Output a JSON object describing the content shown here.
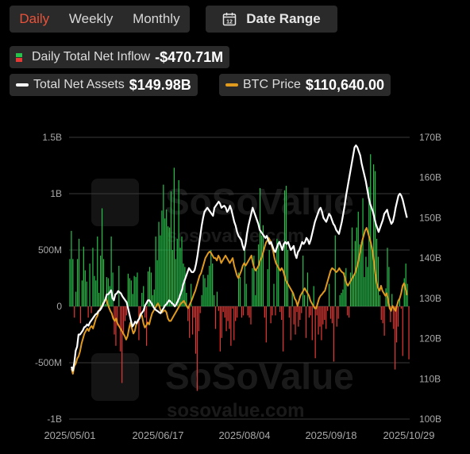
{
  "tabs": [
    {
      "label": "Daily",
      "active": true
    },
    {
      "label": "Weekly",
      "active": false
    },
    {
      "label": "Monthly",
      "active": false
    }
  ],
  "date_range": {
    "label": "Date Range",
    "icon": "calendar-icon",
    "icon_text": "12"
  },
  "legend": {
    "inflow": {
      "label": "Daily Total Net Inflow",
      "value": "-$470.71M"
    },
    "assets": {
      "label": "Total Net Assets",
      "value": "$149.98B",
      "color": "#ffffff"
    },
    "btc": {
      "label": "BTC Price",
      "value": "$110,640.00",
      "color": "#e09a1e"
    }
  },
  "watermark": {
    "brand": "SoSoValue",
    "url": "sosovalue.com"
  },
  "colors": {
    "positive": "#27c24c",
    "negative": "#e53935",
    "assets": "#ffffff",
    "btc": "#e09a1e"
  },
  "chart_data": {
    "type": "bar+line",
    "left_ticks": [
      "1.5B",
      "1B",
      "500M",
      "0",
      "-500M",
      "-1B"
    ],
    "right_ticks": [
      "170B",
      "160B",
      "150B",
      "140B",
      "130B",
      "120B",
      "110B",
      "100B"
    ],
    "x_ticks": [
      "2025/05/01",
      "2025/06/17",
      "2025/08/04",
      "2025/09/18",
      "2025/10/29"
    ],
    "ylim_left": [
      -1000,
      1500
    ],
    "ylim_right": [
      100,
      170
    ],
    "inflow_values_musd": [
      420,
      670,
      420,
      -100,
      130,
      420,
      600,
      -150,
      230,
      530,
      320,
      220,
      -100,
      380,
      -60,
      520,
      270,
      230,
      620,
      120,
      450,
      870,
      420,
      20,
      260,
      250,
      180,
      620,
      300,
      -250,
      -350,
      -170,
      360,
      -400,
      -680,
      -250,
      -130,
      -80,
      290,
      250,
      230,
      110,
      270,
      260,
      300,
      -300,
      -100,
      120,
      180,
      -100,
      -350,
      310,
      350,
      300,
      100,
      150,
      620,
      410,
      750,
      630,
      850,
      1080,
      780,
      860,
      710,
      700,
      1020,
      500,
      1230,
      420,
      600,
      1120,
      520,
      620,
      380,
      350,
      120,
      -130,
      -280,
      200,
      -250,
      -100,
      -420,
      -750,
      -220,
      -60,
      100,
      280,
      250,
      170,
      280,
      360,
      500,
      380,
      100,
      -200,
      130,
      -40,
      -400,
      -280,
      -50,
      -100,
      -220,
      -130,
      -200,
      -350,
      -20,
      -300,
      -130,
      -100,
      300,
      260,
      -100,
      -80,
      500,
      200,
      -80,
      -100,
      -160,
      340,
      450,
      100,
      320,
      550,
      1050,
      630,
      720,
      -100,
      -320,
      330,
      500,
      -150,
      -80,
      200,
      -80,
      600,
      580,
      -50,
      -120,
      -400,
      1030,
      1070,
      500,
      -100,
      -300,
      120,
      -160,
      -250,
      -50,
      -180,
      -120,
      -60,
      450,
      100,
      -280,
      300,
      -100,
      -80,
      -300,
      180,
      -460,
      -80,
      -250,
      -180,
      -300,
      -160,
      -120,
      -200,
      -40,
      200,
      -110,
      -150,
      -490,
      630,
      -180,
      -110,
      100,
      120,
      150,
      300,
      340,
      -80,
      -100,
      300,
      700,
      270,
      580,
      700,
      840,
      550,
      570,
      960,
      260,
      440,
      350,
      1060,
      1350,
      530,
      1260,
      1200,
      600,
      440,
      100,
      -120,
      -150,
      -260,
      160,
      520,
      350,
      -140,
      110,
      -200,
      -560,
      -320,
      -180,
      70,
      -20,
      -440,
      250,
      380,
      200,
      -470
    ],
    "total_net_assets_b": [
      113.0,
      112.0,
      114.0,
      117.0,
      118.0,
      121.0,
      121.0,
      121.5,
      122.0,
      122.8,
      123.0,
      123.5,
      123.2,
      124.0,
      124.5,
      125.0,
      125.5,
      126.0,
      126.2,
      126.8,
      127.0,
      127.5,
      128.2,
      129.0,
      129.8,
      131.0,
      131.0,
      131.5,
      132.0,
      130.0,
      129.5,
      131.0,
      131.2,
      131.8,
      131.5,
      131.2,
      130.5,
      130.0,
      129.5,
      129.0,
      127.5,
      126.0,
      124.5,
      123.0,
      123.5,
      124.2,
      123.8,
      124.5,
      125.0,
      126.0,
      126.5,
      127.0,
      128.2,
      128.8,
      129.5,
      129.5,
      129.0,
      128.5,
      127.8,
      127.3,
      127.0,
      126.8,
      126.5,
      126.3,
      127.0,
      127.5,
      128.2,
      128.5,
      129.0,
      129.5,
      129.2,
      128.8,
      128.5,
      128.0,
      128.5,
      129.2,
      130.0,
      131.0,
      132.0,
      133.5,
      134.5,
      135.5,
      136.5,
      137.5,
      137.0,
      136.5,
      136.5,
      137.0,
      138.5,
      140.5,
      143.0,
      145.5,
      148.0,
      150.0,
      151.5,
      152.0,
      152.5,
      152.0,
      151.5,
      151.0,
      150.5,
      152.5,
      153.0,
      153.5,
      154.0,
      153.5,
      152.5,
      152.8,
      153.0,
      152.5,
      151.5,
      152.0,
      153.0,
      152.0,
      150.5,
      149.0,
      148.0,
      146.5,
      145.5,
      145.0,
      144.5,
      143.0,
      142.0,
      143.5,
      146.0,
      148.0,
      149.5,
      151.0,
      152.5,
      151.5,
      150.5,
      149.5,
      148.5,
      147.0,
      146.5,
      146.0,
      145.5,
      145.0,
      145.5,
      144.5,
      143.5,
      144.0,
      143.0,
      142.0,
      141.5,
      142.5,
      143.5,
      144.0,
      143.0,
      142.0,
      143.5,
      144.0,
      143.5,
      144.0,
      143.0,
      142.0,
      142.5,
      143.0,
      141.0,
      140.0,
      141.5,
      142.0,
      143.0,
      144.0,
      143.5,
      144.0,
      145.0,
      144.5,
      143.5,
      144.5,
      146.0,
      147.5,
      149.0,
      150.0,
      151.0,
      152.0,
      152.5,
      151.5,
      150.0,
      149.5,
      149.0,
      150.0,
      151.0,
      150.5,
      149.5,
      148.5,
      148.0,
      147.0,
      146.5,
      146.0,
      147.5,
      149.0,
      151.0,
      153.0,
      155.5,
      157.5,
      159.5,
      161.5,
      163.5,
      165.5,
      167.5,
      168.0,
      167.5,
      166.5,
      165.5,
      163.5,
      162.0,
      160.5,
      159.0,
      157.0,
      155.0,
      153.5,
      152.5,
      151.5,
      150.0,
      148.5,
      147.5,
      146.5,
      147.5,
      148.5,
      149.5,
      151.0,
      151.5,
      152.0,
      150.5,
      149.5,
      148.5,
      149.0,
      150.5,
      152.5,
      154.0,
      155.5,
      156.0,
      155.5,
      154.5,
      153.0,
      151.5,
      150.0
    ],
    "btc_price_usd": [
      96000,
      95000,
      96500,
      97000,
      98000,
      98500,
      99500,
      101000,
      102000,
      103000,
      103500,
      104000,
      103500,
      104200,
      104500,
      104000,
      105000,
      106000,
      106500,
      107500,
      108000,
      108500,
      109000,
      109500,
      110000,
      109000,
      108200,
      107500,
      107000,
      106000,
      105500,
      106000,
      105000,
      104500,
      104000,
      103500,
      103000,
      102500,
      101800,
      102500,
      104000,
      105200,
      104000,
      103000,
      103500,
      104800,
      105300,
      106000,
      107000,
      106500,
      105000,
      104200,
      104600,
      105200,
      104800,
      106000,
      107000,
      107500,
      108000,
      108500,
      109000,
      108500,
      107500,
      107200,
      107500,
      107600,
      107200,
      106000,
      105500,
      105500,
      106000,
      106500,
      107000,
      107500,
      108000,
      108500,
      109000,
      109200,
      109500,
      109000,
      108500,
      108000,
      108700,
      109300,
      110000,
      110800,
      111500,
      112500,
      113500,
      114500,
      115000,
      116000,
      117000,
      118000,
      118500,
      119000,
      119300,
      119000,
      118500,
      118000,
      118000,
      117500,
      118500,
      118000,
      117000,
      117500,
      118000,
      118500,
      118000,
      117500,
      117000,
      117500,
      118000,
      116500,
      115500,
      114500,
      114000,
      114800,
      115500,
      116500,
      117000,
      116500,
      117000,
      117500,
      118000,
      118500,
      117000,
      116000,
      115500,
      116000,
      116500,
      117500,
      118000,
      119000,
      120000,
      121000,
      121500,
      122000,
      121500,
      120500,
      119500,
      118000,
      117000,
      116500,
      116000,
      115500,
      116000,
      115500,
      114500,
      113500,
      113000,
      112500,
      112000,
      111500,
      111000,
      110000,
      109500,
      108500,
      109500,
      110500,
      111000,
      111500,
      112000,
      111500,
      111000,
      110500,
      109500,
      109000,
      108500,
      108000,
      108000,
      109000,
      110000,
      110500,
      110800,
      111200,
      111500,
      112500,
      113500,
      114500,
      115500,
      116000,
      115800,
      115500,
      115200,
      115500,
      116000,
      115500,
      115200,
      115000,
      114000,
      113000,
      112500,
      113000,
      113500,
      114000,
      114500,
      115000,
      116000,
      117000,
      118500,
      120000,
      121500,
      122500,
      123500,
      124000,
      123000,
      122000,
      121000,
      119500,
      117500,
      115000,
      113000,
      112000,
      111500,
      112500,
      111500,
      111000,
      110500,
      111000,
      109500,
      108000,
      107500,
      108500,
      108000,
      107500,
      108500,
      109500,
      110000,
      111000,
      112500,
      113000,
      112000,
      110640
    ]
  }
}
